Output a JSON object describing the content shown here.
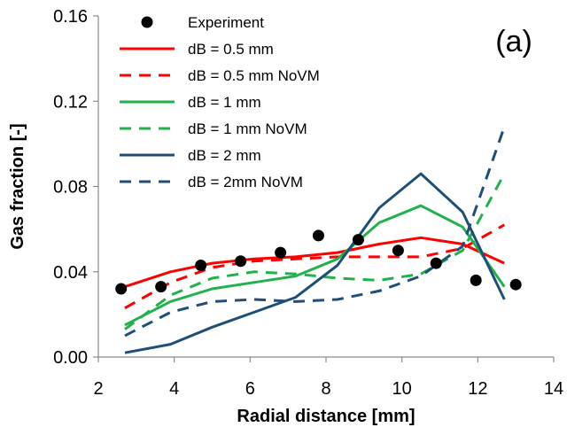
{
  "chart_data": {
    "type": "line",
    "panel_label": "(a)",
    "xlabel": "Radial distance [mm]",
    "ylabel": "Gas  fraction [-]",
    "xlim": [
      2,
      14
    ],
    "ylim": [
      0,
      0.16
    ],
    "xticks": [
      2,
      4,
      6,
      8,
      10,
      12,
      14
    ],
    "yticks": [
      0.0,
      0.04,
      0.08,
      0.12,
      0.16
    ],
    "xtick_labels": [
      "2",
      "4",
      "6",
      "8",
      "10",
      "12",
      "14"
    ],
    "ytick_labels": [
      "0.00",
      "0.04",
      "0.08",
      "0.12",
      "0.16"
    ],
    "legend_position": "top-left",
    "grid": false,
    "series": [
      {
        "name": "Experiment",
        "kind": "markers",
        "color": "#000000",
        "x": [
          2.6,
          3.65,
          4.7,
          5.75,
          6.8,
          7.8,
          8.85,
          9.9,
          10.9,
          11.95,
          13.0
        ],
        "y": [
          0.032,
          0.033,
          0.043,
          0.045,
          0.049,
          0.057,
          0.055,
          0.05,
          0.044,
          0.036,
          0.034
        ]
      },
      {
        "name": "dB = 0.5 mm",
        "kind": "line",
        "dash": "solid",
        "color": "#ff0000",
        "x": [
          2.7,
          3.9,
          5.0,
          6.1,
          7.2,
          8.3,
          9.4,
          10.5,
          11.6,
          12.7
        ],
        "y": [
          0.033,
          0.04,
          0.044,
          0.046,
          0.047,
          0.049,
          0.053,
          0.056,
          0.053,
          0.044
        ]
      },
      {
        "name": "dB = 0.5 mm NoVM",
        "kind": "line",
        "dash": "dashed",
        "color": "#ff0000",
        "x": [
          2.7,
          3.9,
          5.0,
          6.1,
          7.2,
          8.3,
          9.4,
          10.5,
          11.6,
          12.7
        ],
        "y": [
          0.023,
          0.035,
          0.042,
          0.045,
          0.046,
          0.047,
          0.047,
          0.047,
          0.051,
          0.062
        ]
      },
      {
        "name": "dB = 1 mm",
        "kind": "line",
        "dash": "solid",
        "color": "#22b14c",
        "x": [
          2.7,
          3.9,
          5.0,
          6.1,
          7.2,
          8.3,
          9.4,
          10.5,
          11.6,
          12.7
        ],
        "y": [
          0.015,
          0.026,
          0.032,
          0.035,
          0.038,
          0.046,
          0.063,
          0.071,
          0.061,
          0.033
        ]
      },
      {
        "name": "dB = 1 mm NoVM",
        "kind": "line",
        "dash": "dashed",
        "color": "#22b14c",
        "x": [
          2.7,
          3.9,
          5.0,
          6.1,
          7.2,
          8.3,
          9.4,
          10.5,
          11.6,
          12.7
        ],
        "y": [
          0.013,
          0.029,
          0.037,
          0.04,
          0.039,
          0.037,
          0.036,
          0.039,
          0.05,
          0.086
        ]
      },
      {
        "name": "dB = 2 mm",
        "kind": "line",
        "dash": "solid",
        "color": "#1f4e79",
        "x": [
          2.7,
          3.9,
          5.0,
          6.1,
          7.2,
          8.3,
          9.4,
          10.5,
          11.6,
          12.7
        ],
        "y": [
          0.002,
          0.006,
          0.014,
          0.021,
          0.028,
          0.043,
          0.07,
          0.086,
          0.068,
          0.027
        ]
      },
      {
        "name": "dB = 2mm NoVM",
        "kind": "line",
        "dash": "dashed",
        "color": "#1f4e79",
        "x": [
          2.7,
          3.9,
          5.0,
          6.1,
          7.2,
          8.3,
          9.4,
          10.5,
          11.6,
          12.7
        ],
        "y": [
          0.01,
          0.021,
          0.026,
          0.027,
          0.026,
          0.027,
          0.031,
          0.038,
          0.052,
          0.108
        ]
      }
    ]
  }
}
